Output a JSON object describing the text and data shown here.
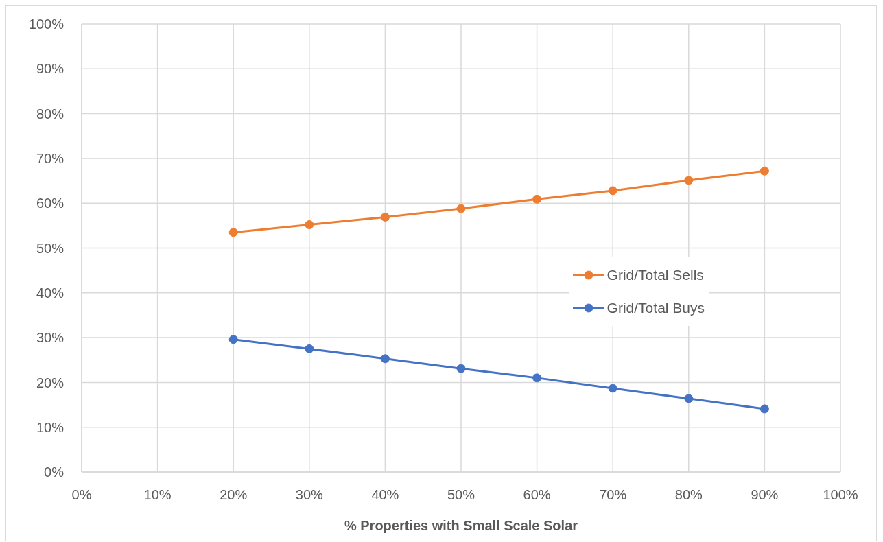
{
  "chart_data": {
    "type": "line",
    "x": [
      20,
      30,
      40,
      50,
      60,
      70,
      80,
      90
    ],
    "series": [
      {
        "name": "Grid/Total Sells",
        "color": "#ed7d31",
        "values": [
          53.5,
          55.2,
          56.9,
          58.8,
          60.9,
          62.8,
          65.1,
          67.2
        ]
      },
      {
        "name": "Grid/Total Buys",
        "color": "#4472c4",
        "values": [
          29.6,
          27.5,
          25.3,
          23.1,
          21.0,
          18.7,
          16.4,
          14.1
        ]
      }
    ],
    "xlabel": "% Properties with Small Scale Solar",
    "xlim": [
      0,
      100
    ],
    "ylim": [
      0,
      100
    ],
    "xticks": [
      {
        "value": 0,
        "label": "0%"
      },
      {
        "value": 10,
        "label": "10%"
      },
      {
        "value": 20,
        "label": "20%"
      },
      {
        "value": 30,
        "label": "30%"
      },
      {
        "value": 40,
        "label": "40%"
      },
      {
        "value": 50,
        "label": "50%"
      },
      {
        "value": 60,
        "label": "60%"
      },
      {
        "value": 70,
        "label": "70%"
      },
      {
        "value": 80,
        "label": "80%"
      },
      {
        "value": 90,
        "label": "90%"
      },
      {
        "value": 100,
        "label": "100%"
      }
    ],
    "yticks": [
      {
        "value": 0,
        "label": "0%"
      },
      {
        "value": 10,
        "label": "10%"
      },
      {
        "value": 20,
        "label": "20%"
      },
      {
        "value": 30,
        "label": "30%"
      },
      {
        "value": 40,
        "label": "40%"
      },
      {
        "value": 50,
        "label": "50%"
      },
      {
        "value": 60,
        "label": "60%"
      },
      {
        "value": 70,
        "label": "70%"
      },
      {
        "value": 80,
        "label": "80%"
      },
      {
        "value": 90,
        "label": "90%"
      },
      {
        "value": 100,
        "label": "100%"
      }
    ],
    "grid": true,
    "legend": "right",
    "marker": "circle",
    "line_style": "solid"
  }
}
